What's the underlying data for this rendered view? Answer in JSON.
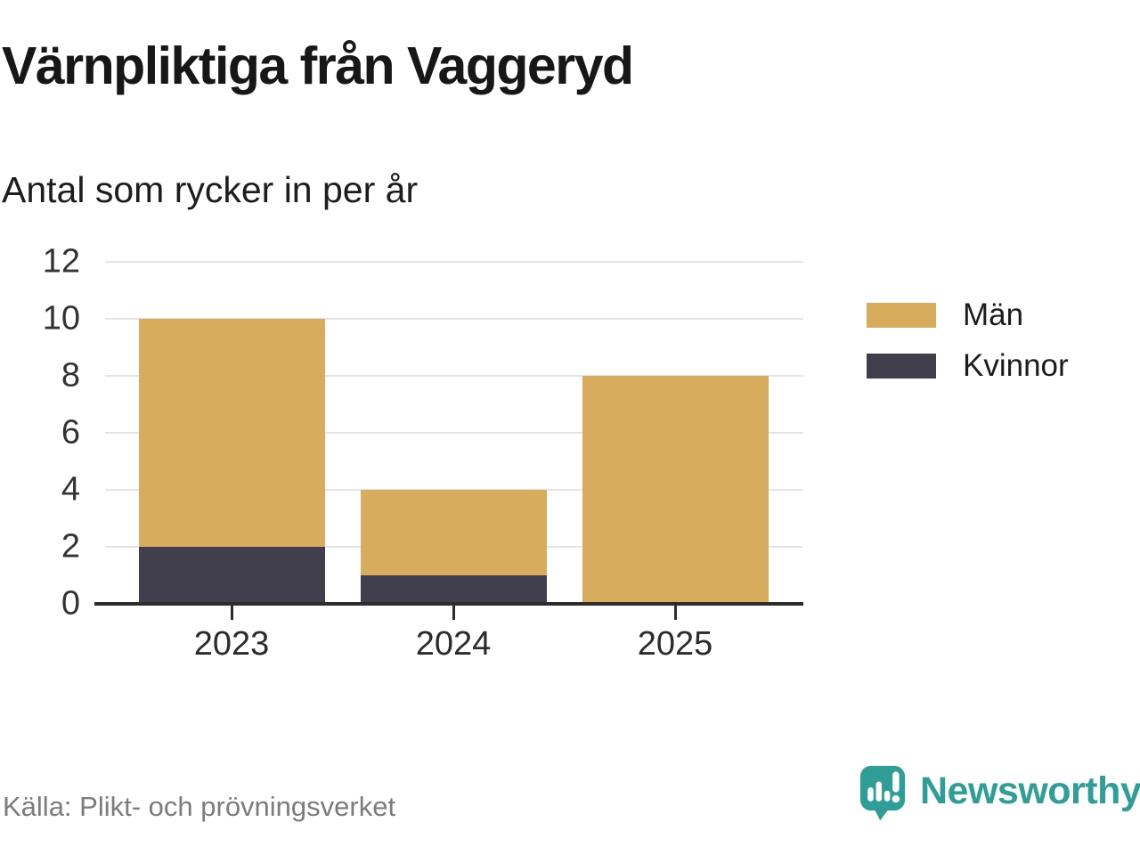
{
  "header": {
    "title": "Värnpliktiga från Vaggeryd",
    "subtitle": "Antal som rycker in per år"
  },
  "chart_data": {
    "type": "bar",
    "stacked": true,
    "title": "Värnpliktiga från Vaggeryd",
    "subtitle": "Antal som rycker in per år",
    "categories": [
      "2023",
      "2024",
      "2025"
    ],
    "series": [
      {
        "name": "Män",
        "values": [
          8,
          3,
          8
        ],
        "color": "#D7AC5C"
      },
      {
        "name": "Kvinnor",
        "values": [
          2,
          1,
          0
        ],
        "color": "#413F4D"
      }
    ],
    "stack_order_bottom_to_top": [
      "Kvinnor",
      "Män"
    ],
    "totals": [
      10,
      4,
      8
    ],
    "xlabel": "",
    "ylabel": "",
    "ylim": [
      0,
      12
    ],
    "yticks": [
      0,
      2,
      4,
      6,
      8,
      10,
      12
    ],
    "grid": true,
    "legend_position": "right"
  },
  "footer": {
    "source": "Källa: Plikt- och prövningsverket",
    "brand": "Newsworthy",
    "brand_color": "#2F9E96"
  }
}
